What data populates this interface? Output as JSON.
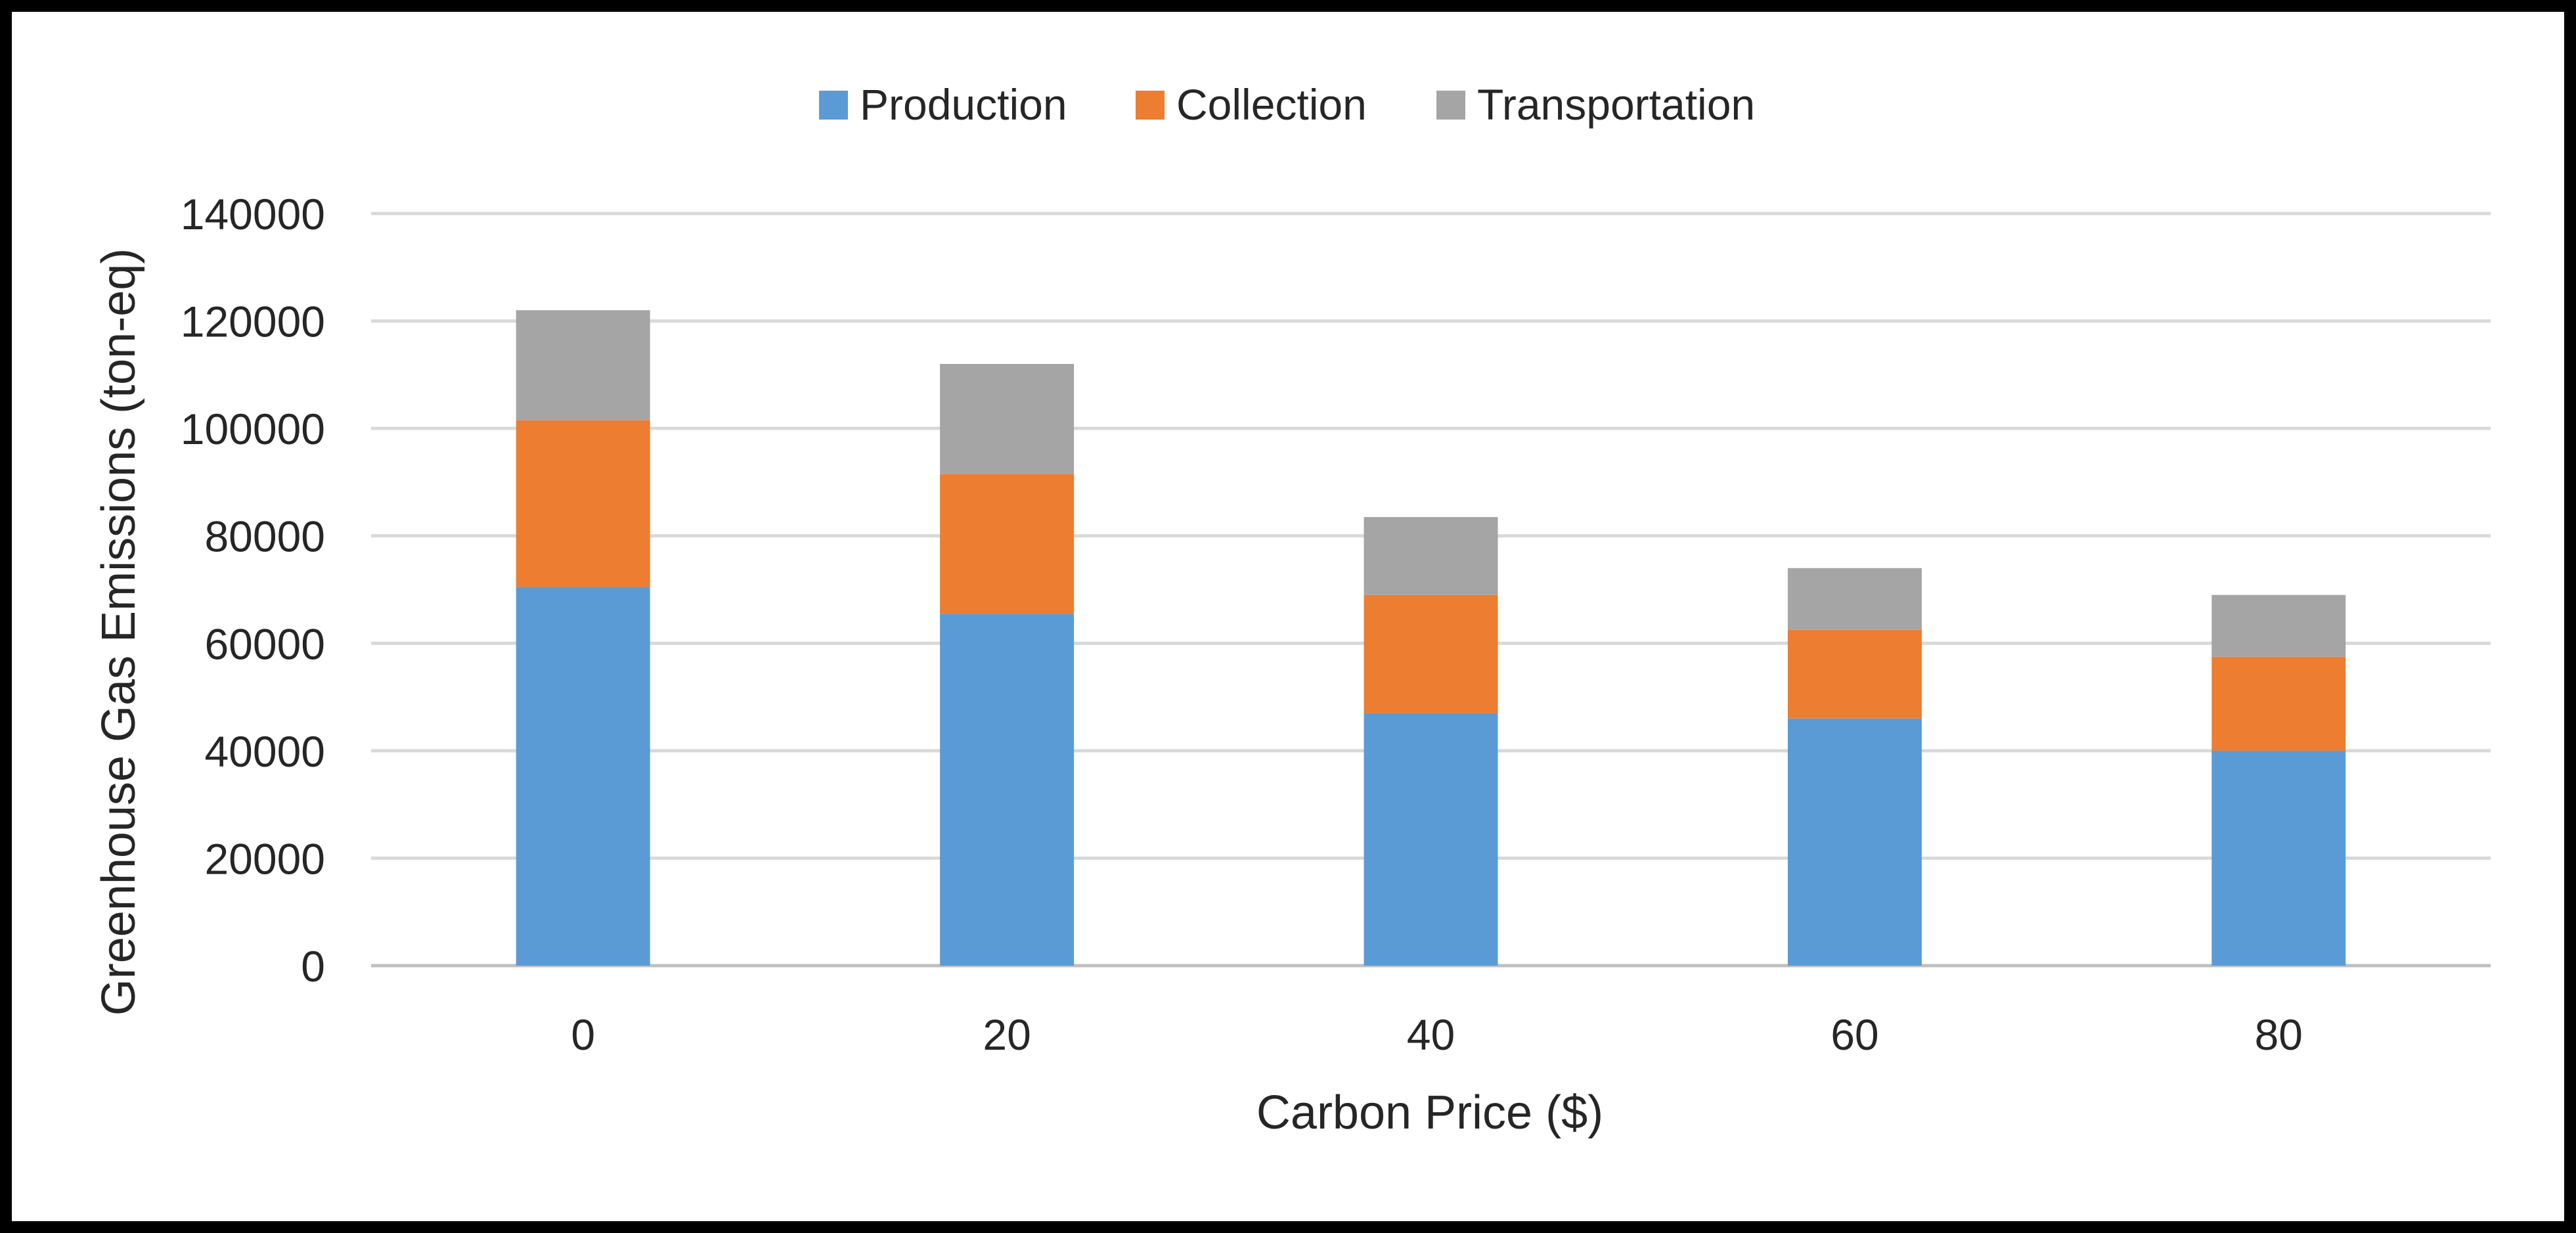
{
  "chart_data": {
    "type": "bar",
    "stacked": true,
    "title": "",
    "xlabel": "Carbon Price ($)",
    "ylabel": "Greenhouse Gas Emissions (ton-eq)",
    "categories": [
      "0",
      "20",
      "40",
      "60",
      "80"
    ],
    "ylim": [
      0,
      140000
    ],
    "yticks": [
      "0",
      "20000",
      "40000",
      "60000",
      "80000",
      "100000",
      "120000",
      "140000"
    ],
    "grid": true,
    "legend_position": "top",
    "series": [
      {
        "name": "Production",
        "color": "#5B9BD5",
        "values": [
          70500,
          65500,
          47000,
          46000,
          40000
        ]
      },
      {
        "name": "Collection",
        "color": "#ED7D31",
        "values": [
          31000,
          26000,
          22000,
          16500,
          17500
        ]
      },
      {
        "name": "Transportation",
        "color": "#A5A5A5",
        "values": [
          20500,
          20500,
          14500,
          11500,
          11500
        ]
      }
    ]
  }
}
